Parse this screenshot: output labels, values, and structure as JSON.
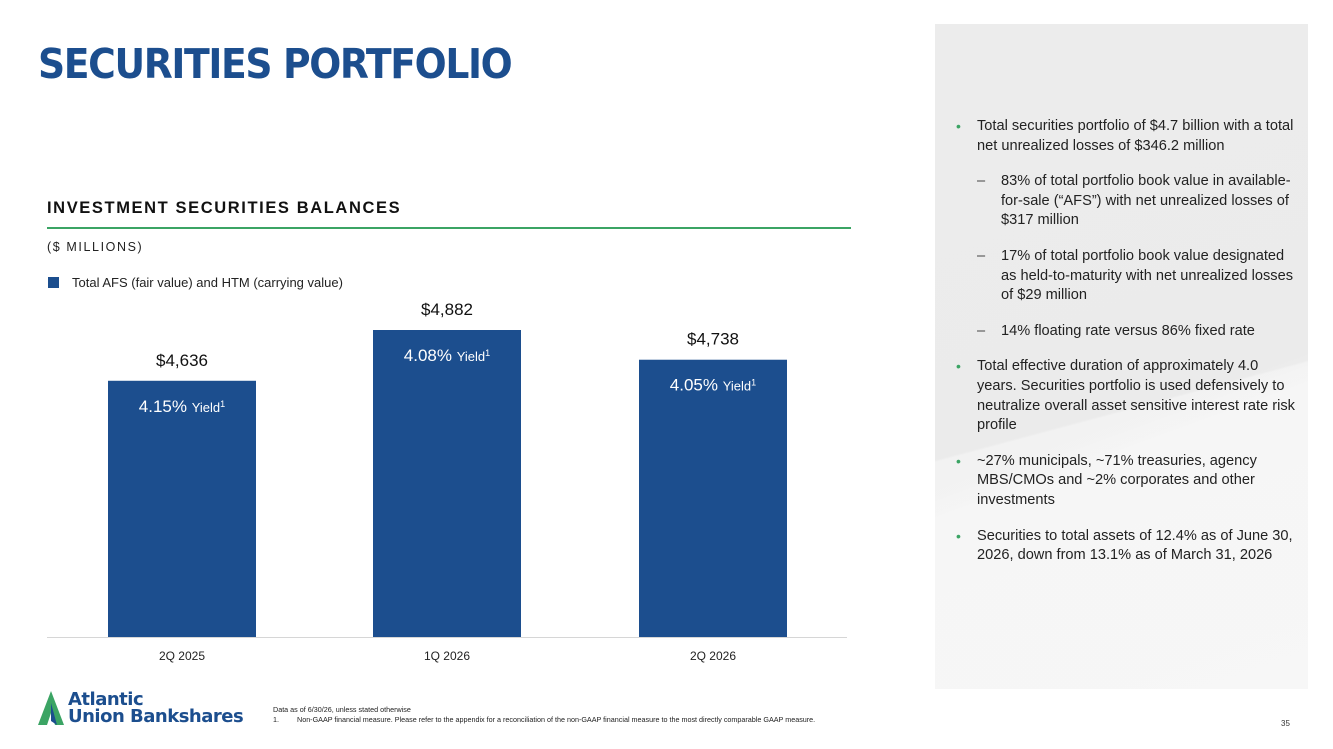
{
  "slide": {
    "title": "SECURITIES PORTFOLIO",
    "page_number": "35"
  },
  "chart_section": {
    "title": "INVESTMENT SECURITIES BALANCES",
    "units": "($ MILLIONS)",
    "legend_label": "Total AFS (fair value) and HTM (carrying value)"
  },
  "chart_data": {
    "type": "bar",
    "categories": [
      "2Q 2025",
      "1Q 2026",
      "2Q 2026"
    ],
    "series": [
      {
        "name": "Total AFS (fair value) and HTM (carrying value)",
        "values": [
          4636,
          4882,
          4738
        ],
        "value_labels": [
          "$4,636",
          "$4,882",
          "$4,738"
        ],
        "yield_pct": [
          "4.15%",
          "4.08%",
          "4.05%"
        ]
      }
    ],
    "yield_word": "Yield",
    "yield_footnote": "1",
    "color": "#1c4e8e",
    "title": "INVESTMENT SECURITIES BALANCES",
    "ylabel": "($ MILLIONS)",
    "grid": false
  },
  "side_panel": {
    "items": [
      {
        "kind": "bullet",
        "text": "Total securities portfolio of $4.7 billion with a total net unrealized losses of $346.2 million"
      },
      {
        "kind": "sub",
        "text": "83% of total portfolio book value in available-for-sale (“AFS”) with net unrealized losses of $317 million"
      },
      {
        "kind": "sub",
        "text": "17% of total portfolio book value designated as held-to-maturity with net unrealized losses of $29 million"
      },
      {
        "kind": "sub",
        "text": "14% floating rate versus 86% fixed rate"
      },
      {
        "kind": "bullet",
        "text": "Total effective duration of approximately 4.0 years. Securities portfolio is used defensively to neutralize overall asset sensitive interest rate risk profile"
      },
      {
        "kind": "bullet",
        "text": "~27% municipals, ~71% treasuries, agency MBS/CMOs and ~2% corporates and other investments"
      },
      {
        "kind": "bullet",
        "text": "Securities to total assets of 12.4% as of June 30, 2026, down from 13.1% as of March 31, 2026"
      }
    ],
    "bullet_glyph": "•",
    "sub_glyph": "–",
    "bullet_color": "#3ba464"
  },
  "footer": {
    "logo_line1": "Atlantic",
    "logo_line2": "Union Bankshares",
    "data_note": "Data as of 6/30/26, unless stated otherwise",
    "footnote_number": "1.",
    "footnote_text": "Non-GAAP financial measure. Please refer to the appendix for a reconciliation of the non-GAAP financial measure to the most directly comparable GAAP measure."
  },
  "colors": {
    "brand_blue": "#1c4e8e",
    "accent_green": "#3ba464"
  }
}
